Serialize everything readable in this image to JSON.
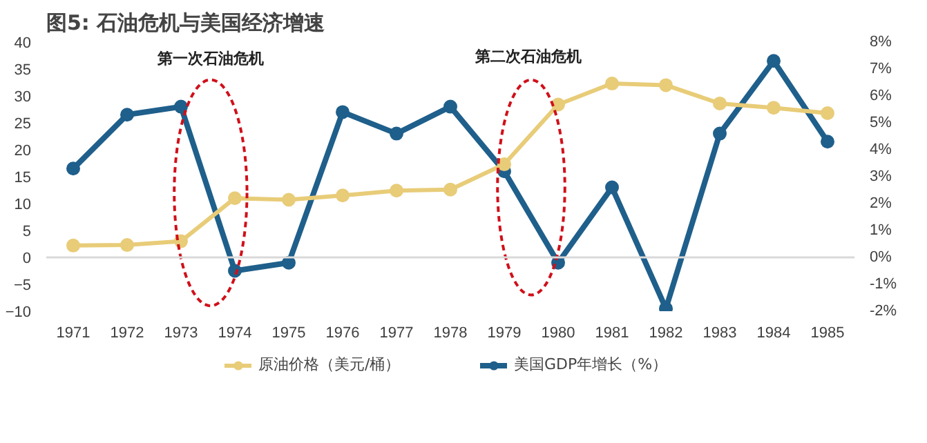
{
  "chart_data": {
    "type": "line",
    "title": "图5: 石油危机与美国经济增速",
    "categories": [
      "1971",
      "1972",
      "1973",
      "1974",
      "1975",
      "1976",
      "1977",
      "1978",
      "1979",
      "1980",
      "1981",
      "1982",
      "1983",
      "1984",
      "1985"
    ],
    "series": [
      {
        "name": "原油价格（美元/桶）",
        "color": "#e8cc78",
        "values": [
          2.2,
          2.3,
          3.0,
          11.0,
          10.7,
          11.5,
          12.4,
          12.6,
          17.3,
          28.4,
          32.3,
          32.0,
          28.6,
          27.8,
          26.8
        ]
      },
      {
        "name": "美国GDP年增长（%）",
        "color": "#1f5f8b",
        "axis": "y2",
        "values": [
          3.3,
          5.3,
          5.6,
          -0.5,
          -0.2,
          5.4,
          4.6,
          5.6,
          3.2,
          -0.2,
          2.6,
          -1.9,
          4.6,
          7.3,
          4.3
        ]
      }
    ],
    "ylim": [
      -10,
      40
    ],
    "yticks": [
      -10,
      -5,
      0,
      5,
      10,
      15,
      20,
      25,
      30,
      35,
      40
    ],
    "y2lim": [
      -2,
      8
    ],
    "y2ticks": [
      {
        "value": -2,
        "label": "-2%"
      },
      {
        "value": -1,
        "label": "-1%"
      },
      {
        "value": 0,
        "label": "0%"
      },
      {
        "value": 1,
        "label": "1%"
      },
      {
        "value": 2,
        "label": "2%"
      },
      {
        "value": 3,
        "label": "3%"
      },
      {
        "value": 4,
        "label": "4%"
      },
      {
        "value": 5,
        "label": "5%"
      },
      {
        "value": 6,
        "label": "6%"
      },
      {
        "value": 7,
        "label": "7%"
      },
      {
        "value": 8,
        "label": "8%"
      }
    ],
    "ref_lines": [
      {
        "axis": "y",
        "value": 0,
        "color": "#d9d9d9"
      }
    ],
    "annotations": [
      "第一次石油危机",
      "第二次石油危机"
    ],
    "grid": false,
    "legend": "bottom",
    "marker": "circle",
    "line_style": "solid"
  }
}
